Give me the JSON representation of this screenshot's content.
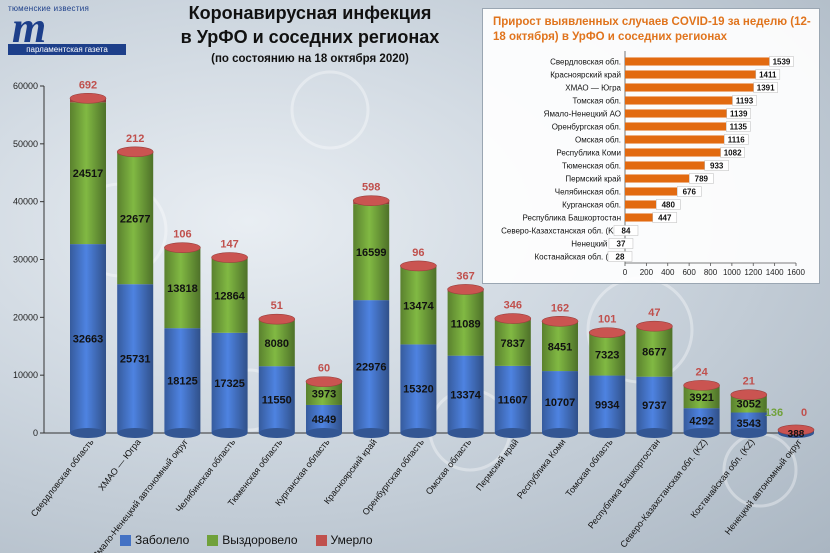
{
  "logo": {
    "top_text": "тюменские известия",
    "mark": "m",
    "bottom_text": "парламентская газета"
  },
  "title": {
    "line1": "Коронавирусная инфекция",
    "line2": "в УрФО и соседних регионах",
    "subtitle": "(по состоянию на 18 октября 2020)"
  },
  "colors": {
    "sick": "#4472c4",
    "recovered": "#70a13a",
    "died": "#c0504d",
    "inset_bar": "#e26a10",
    "inset_title": "#e0741d"
  },
  "legend": {
    "sick": "Заболело",
    "recovered": "Выздоровело",
    "died": "Умерло"
  },
  "chart_data": [
    {
      "type": "bar",
      "stacked": true,
      "categories": [
        "Свердловская область",
        "ХМАО — Югра",
        "Ямало-Ненецкий автономный округ",
        "Челябинская область",
        "Тюменская область",
        "Курганская область",
        "Красноярский край",
        "Оренбургская область",
        "Омская область",
        "Пермский край",
        "Республика Коми",
        "Томская область",
        "Республика Башкортостан",
        "Северо-Казахстанская обл. (KZ)",
        "Костанайская обл. (KZ)",
        "Ненецкий автономный округ"
      ],
      "series": [
        {
          "name": "Заболело",
          "values": [
            32663,
            25731,
            18125,
            17325,
            11550,
            4849,
            22976,
            15320,
            13374,
            11607,
            10707,
            9934,
            9737,
            4292,
            3543,
            388
          ]
        },
        {
          "name": "Выздоровело",
          "values": [
            24517,
            22677,
            13818,
            12864,
            8080,
            3973,
            16599,
            13474,
            11089,
            7837,
            8451,
            7323,
            8677,
            3921,
            3052,
            136
          ]
        },
        {
          "name": "Умерло",
          "values": [
            692,
            212,
            106,
            147,
            51,
            60,
            598,
            96,
            367,
            346,
            162,
            101,
            47,
            24,
            21,
            0
          ]
        }
      ],
      "yticks": [
        "0",
        "10000",
        "20000",
        "30000",
        "40000",
        "50000",
        "60000"
      ],
      "ylim": [
        0,
        60000
      ],
      "legend_position": "bottom"
    },
    {
      "type": "bar",
      "orientation": "horizontal",
      "title": "Прирост выявленных случаев COVID-19 за неделю (12-18 октября) в УрФО и соседних регионах",
      "categories": [
        "Свердловская обл.",
        "Красноярский край",
        "ХМАО — Югра",
        "Томская обл.",
        "Ямало-Ненецкий АО",
        "Оренбургская обл.",
        "Омская обл.",
        "Республика Коми",
        "Тюменская обл.",
        "Пермский край",
        "Челябинская обл.",
        "Курганская обл.",
        "Республика Башкортостан",
        "Северо-Казахстанская обл. (KZ)",
        "Ненецкий АО",
        "Костанайская обл. (KZ)"
      ],
      "values": [
        1539,
        1411,
        1391,
        1193,
        1139,
        1135,
        1116,
        1082,
        933,
        789,
        676,
        480,
        447,
        84,
        37,
        28
      ],
      "xticks": [
        "0",
        "200",
        "400",
        "600",
        "800",
        "1000",
        "1200",
        "1400",
        "1600"
      ],
      "xlim": [
        0,
        1600
      ]
    }
  ]
}
